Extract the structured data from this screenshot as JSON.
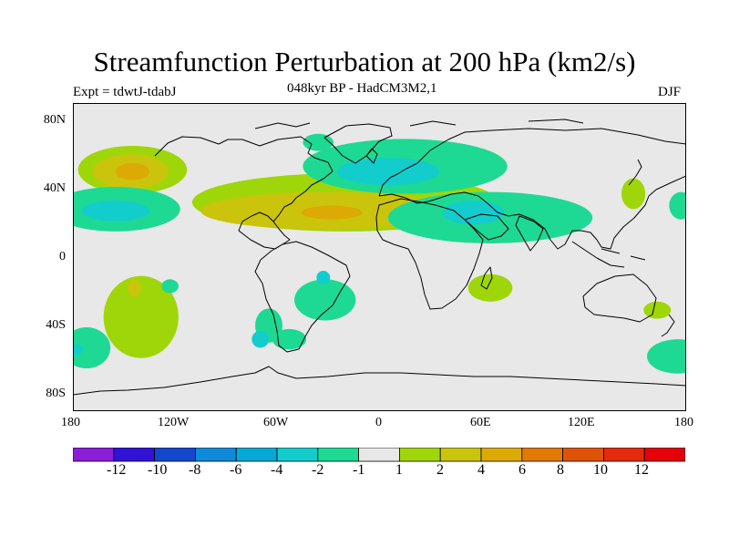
{
  "title": "Streamfunction Perturbation at 200 hPa (km2/s)",
  "experiment": "Expt = tdwtJ-tdabJ",
  "subtitle": "048kyr BP - HadCM3M2,1",
  "season": "DJF",
  "lat_labels": [
    "80N",
    "40N",
    "0",
    "40S",
    "80S"
  ],
  "lon_labels": [
    "180",
    "120W",
    "60W",
    "0",
    "60E",
    "120E",
    "180"
  ],
  "colorbar": {
    "labels": [
      "-12",
      "-10",
      "-8",
      "-6",
      "-4",
      "-2",
      "-1",
      "1",
      "2",
      "4",
      "6",
      "8",
      "10",
      "12"
    ],
    "colors": [
      "#8b1ed8",
      "#3213d6",
      "#1249cc",
      "#0e8ad8",
      "#06a8d6",
      "#13cccc",
      "#1ed993",
      "#e8e8e8",
      "#9fd60a",
      "#cbc40c",
      "#ddaa05",
      "#e17a05",
      "#de5306",
      "#e32b0b",
      "#e6000a"
    ]
  },
  "map_data": {
    "projection": "cylindrical-equidistant",
    "lon_range": [
      -180,
      180
    ],
    "lat_range": [
      -90,
      90
    ],
    "fill_blobs": [
      {
        "lon": -145,
        "lat": 51,
        "rx": 32,
        "ry": 14,
        "color": "#9fd60a"
      },
      {
        "lon": -146,
        "lat": 50,
        "rx": 22,
        "ry": 10,
        "color": "#cbc40c"
      },
      {
        "lon": -145,
        "lat": 50,
        "rx": 10,
        "ry": 5,
        "color": "#ddaa05"
      },
      {
        "lon": -155,
        "lat": 28,
        "rx": 38,
        "ry": 13,
        "color": "#1ed993"
      },
      {
        "lon": -155,
        "lat": 27,
        "rx": 20,
        "ry": 6,
        "color": "#13cccc"
      },
      {
        "lon": -20,
        "lat": 32,
        "rx": 90,
        "ry": 17,
        "color": "#9fd60a"
      },
      {
        "lon": -30,
        "lat": 27,
        "rx": 75,
        "ry": 11,
        "color": "#cbc40c"
      },
      {
        "lon": -28,
        "lat": 26,
        "rx": 18,
        "ry": 4,
        "color": "#ddaa05"
      },
      {
        "lon": 15,
        "lat": 53,
        "rx": 60,
        "ry": 16,
        "color": "#1ed993"
      },
      {
        "lon": 5,
        "lat": 50,
        "rx": 30,
        "ry": 8,
        "color": "#13cccc"
      },
      {
        "lon": 65,
        "lat": 23,
        "rx": 60,
        "ry": 15,
        "color": "#1ed993"
      },
      {
        "lon": 55,
        "lat": 26,
        "rx": 18,
        "ry": 7,
        "color": "#13cccc"
      },
      {
        "lon": -36,
        "lat": 67,
        "rx": 9,
        "ry": 5,
        "color": "#1ed993"
      },
      {
        "lon": 149,
        "lat": 37,
        "rx": 7,
        "ry": 9,
        "color": "#9fd60a"
      },
      {
        "lon": 177,
        "lat": 30,
        "rx": 7,
        "ry": 8,
        "color": "#1ed993"
      },
      {
        "lon": -140,
        "lat": -35,
        "rx": 22,
        "ry": 24,
        "color": "#9fd60a"
      },
      {
        "lon": -144,
        "lat": -18,
        "rx": 4,
        "ry": 5,
        "color": "#cbc40c"
      },
      {
        "lon": -123,
        "lat": -17,
        "rx": 5,
        "ry": 4,
        "color": "#1ed993"
      },
      {
        "lon": -32,
        "lat": -25,
        "rx": 18,
        "ry": 12,
        "color": "#1ed993"
      },
      {
        "lon": -33,
        "lat": -12,
        "rx": 4,
        "ry": 4,
        "color": "#13cccc"
      },
      {
        "lon": -65,
        "lat": -40,
        "rx": 8,
        "ry": 10,
        "color": "#1ed993"
      },
      {
        "lon": -70,
        "lat": -48,
        "rx": 5,
        "ry": 5,
        "color": "#13cccc"
      },
      {
        "lon": -53,
        "lat": -48,
        "rx": 10,
        "ry": 6,
        "color": "#1ed993"
      },
      {
        "lon": 65,
        "lat": -18,
        "rx": 13,
        "ry": 8,
        "color": "#9fd60a"
      },
      {
        "lon": 163,
        "lat": -31,
        "rx": 8,
        "ry": 5,
        "color": "#9fd60a"
      },
      {
        "lon": -172,
        "lat": -53,
        "rx": 14,
        "ry": 12,
        "color": "#1ed993"
      },
      {
        "lon": -178,
        "lat": -54,
        "rx": 4,
        "ry": 3,
        "color": "#13cccc"
      },
      {
        "lon": 175,
        "lat": -58,
        "rx": 18,
        "ry": 10,
        "color": "#1ed993"
      }
    ]
  }
}
